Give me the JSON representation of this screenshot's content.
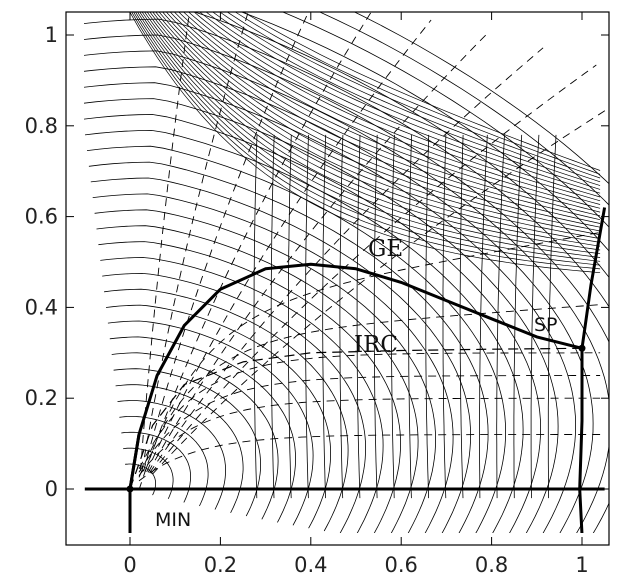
{
  "chart_data": {
    "type": "contour",
    "title": "",
    "xlabel": "",
    "ylabel": "",
    "xlim": [
      -0.1,
      1.05
    ],
    "ylim": [
      -0.1,
      1.05
    ],
    "x_ticks": [
      "0",
      "0.2",
      "0.4",
      "0.6",
      "0.8",
      "1"
    ],
    "y_ticks": [
      "0",
      "0.2",
      "0.4",
      "0.6",
      "0.8",
      "1"
    ],
    "annotations": {
      "ge": "GE",
      "irc": "IRC",
      "sp": "SP",
      "min": "MIN"
    },
    "stationary_points": [
      {
        "name": "MIN",
        "x": 0.0,
        "y": 0.0
      },
      {
        "name": "SP",
        "x": 1.0,
        "y": 0.31
      }
    ],
    "curves": {
      "ge": [
        [
          0.0,
          0.0
        ],
        [
          0.02,
          0.12
        ],
        [
          0.06,
          0.25
        ],
        [
          0.12,
          0.36
        ],
        [
          0.2,
          0.44
        ],
        [
          0.3,
          0.485
        ],
        [
          0.4,
          0.495
        ],
        [
          0.5,
          0.485
        ],
        [
          0.6,
          0.455
        ],
        [
          0.7,
          0.415
        ],
        [
          0.8,
          0.375
        ],
        [
          0.9,
          0.335
        ],
        [
          1.0,
          0.31
        ]
      ],
      "irc": [
        [
          0.0,
          0.0
        ],
        [
          0.05,
          0.14
        ],
        [
          0.12,
          0.23
        ],
        [
          0.25,
          0.28
        ],
        [
          0.4,
          0.3
        ],
        [
          0.6,
          0.305
        ],
        [
          0.8,
          0.308
        ],
        [
          1.0,
          0.31
        ]
      ],
      "x_axis_line": [
        [
          -0.1,
          0.0
        ],
        [
          1.05,
          0.0
        ]
      ],
      "left_separatrix": [
        [
          0.0,
          -0.1
        ],
        [
          0.0,
          0.0
        ],
        [
          0.02,
          0.12
        ]
      ],
      "right_separatrix": [
        [
          1.0,
          -0.1
        ],
        [
          0.995,
          0.0
        ],
        [
          1.0,
          0.15
        ],
        [
          1.0,
          0.31
        ],
        [
          1.02,
          0.45
        ],
        [
          1.05,
          0.62
        ]
      ]
    },
    "grid": false,
    "legend": "none"
  }
}
